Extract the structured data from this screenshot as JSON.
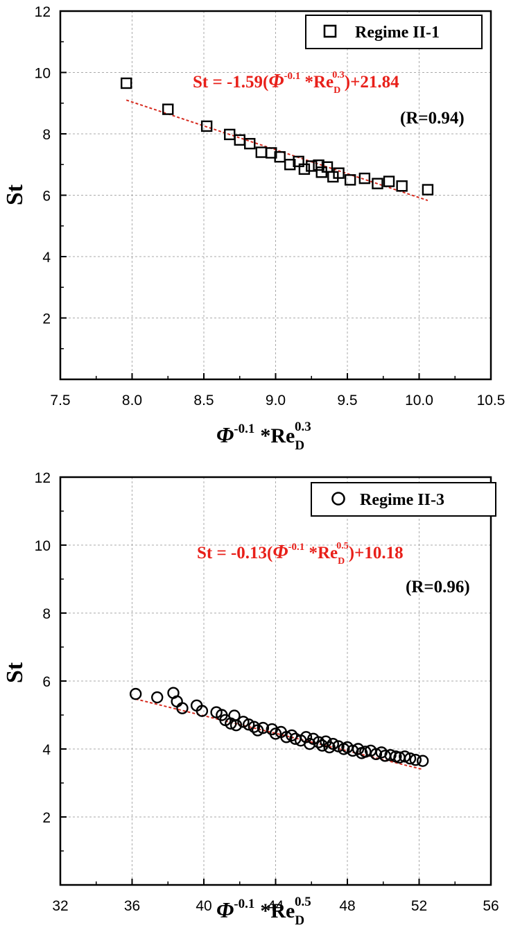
{
  "chart_data": [
    {
      "type": "scatter",
      "xlabel": {
        "phi": "Φ",
        "phi_exp": "-0.1",
        "re": "*Re",
        "re_sub": "D",
        "re_exp": "0.3"
      },
      "ylabel": "St",
      "xlim": [
        7.5,
        10.5
      ],
      "ylim": [
        0,
        12
      ],
      "xticks": [
        "7.5",
        "8.0",
        "8.5",
        "9.0",
        "9.5",
        "10.0",
        "10.5"
      ],
      "yticks": [
        "2",
        "4",
        "6",
        "8",
        "10",
        "12"
      ],
      "grid": true,
      "legend_position": "top-right",
      "marker": "square",
      "series": [
        {
          "name": "Regime II-1",
          "x": [
            7.96,
            8.25,
            8.52,
            8.68,
            8.75,
            8.82,
            8.9,
            8.97,
            9.03,
            9.1,
            9.16,
            9.2,
            9.25,
            9.3,
            9.32,
            9.36,
            9.4,
            9.44,
            9.52,
            9.62,
            9.71,
            9.79,
            9.88,
            10.06
          ],
          "y": [
            9.65,
            8.8,
            8.25,
            7.98,
            7.8,
            7.68,
            7.4,
            7.38,
            7.25,
            7.0,
            7.1,
            6.85,
            6.95,
            6.98,
            6.75,
            6.92,
            6.6,
            6.72,
            6.5,
            6.55,
            6.38,
            6.45,
            6.3,
            6.18
          ]
        }
      ],
      "fit": {
        "x": [
          7.96,
          10.06
        ],
        "y": [
          9.1,
          5.83
        ],
        "color": "#d62a1e",
        "equation": {
          "lhs": "St = -1.59(",
          "phi": "Φ",
          "phi_exp": "-0.1",
          "re": " *Re",
          "re_sub": "D",
          "re_exp": "0.3",
          "rhs": ")+21.84"
        },
        "r_label": "(R=0.94)"
      }
    },
    {
      "type": "scatter",
      "xlabel": {
        "phi": "Φ",
        "phi_exp": "-0.1",
        "re": "*Re",
        "re_sub": "D",
        "re_exp": "0.5"
      },
      "ylabel": "St",
      "xlim": [
        32,
        56
      ],
      "ylim": [
        0,
        12
      ],
      "xticks": [
        "32",
        "36",
        "40",
        "44",
        "48",
        "52",
        "56"
      ],
      "yticks": [
        "2",
        "4",
        "6",
        "8",
        "10",
        "12"
      ],
      "grid": true,
      "legend_position": "top-right",
      "marker": "circle",
      "series": [
        {
          "name": "Regime II-3",
          "x": [
            36.2,
            37.4,
            38.3,
            38.5,
            38.8,
            39.6,
            39.9,
            40.7,
            41.0,
            41.2,
            41.5,
            41.7,
            41.8,
            42.2,
            42.5,
            42.8,
            43.0,
            43.3,
            43.8,
            44.0,
            44.3,
            44.6,
            44.9,
            45.1,
            45.4,
            45.7,
            45.9,
            46.1,
            46.4,
            46.6,
            46.8,
            47.0,
            47.2,
            47.5,
            47.8,
            48.0,
            48.3,
            48.6,
            48.8,
            49.0,
            49.3,
            49.6,
            49.9,
            50.1,
            50.4,
            50.7,
            50.9,
            51.2,
            51.5,
            51.8,
            52.2
          ],
          "y": [
            5.62,
            5.52,
            5.65,
            5.4,
            5.2,
            5.28,
            5.12,
            5.08,
            5.0,
            4.85,
            4.75,
            4.98,
            4.7,
            4.8,
            4.72,
            4.65,
            4.55,
            4.62,
            4.58,
            4.45,
            4.5,
            4.35,
            4.4,
            4.3,
            4.25,
            4.35,
            4.15,
            4.3,
            4.2,
            4.1,
            4.22,
            4.05,
            4.15,
            4.08,
            4.0,
            4.05,
            3.95,
            4.0,
            3.88,
            3.92,
            3.95,
            3.85,
            3.9,
            3.8,
            3.82,
            3.78,
            3.75,
            3.78,
            3.72,
            3.68,
            3.65
          ]
        }
      ],
      "fit": {
        "x": [
          36.2,
          52.2
        ],
        "y": [
          5.47,
          3.4
        ],
        "color": "#d62a1e",
        "equation": {
          "lhs": "St = -0.13(",
          "phi": "Φ",
          "phi_exp": "-0.1",
          "re": " *Re",
          "re_sub": "D",
          "re_exp": "0.5",
          "rhs": ")+10.18"
        },
        "r_label": "(R=0.96)"
      }
    }
  ]
}
